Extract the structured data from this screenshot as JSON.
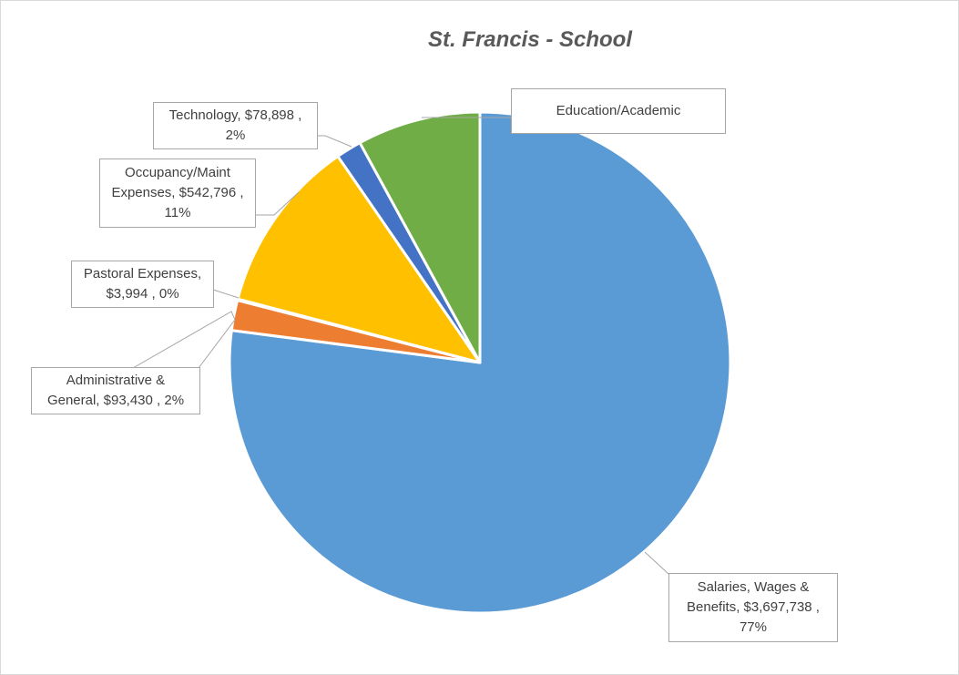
{
  "chart_data": {
    "type": "pie",
    "title": "St. Francis - School",
    "slices": [
      {
        "name": "Salaries, Wages & Benefits",
        "value": 3697738,
        "value_label": "$3,697,738",
        "percent_label": "77%",
        "color": "#5b9bd5"
      },
      {
        "name": "Administrative & General",
        "value": 93430,
        "value_label": "$93,430",
        "percent_label": "2%",
        "color": "#ed7d31"
      },
      {
        "name": "Pastoral Expenses",
        "value": 3994,
        "value_label": "$3,994",
        "percent_label": "0%",
        "color": "#a5a5a5"
      },
      {
        "name": "Occupancy/Maint Expenses",
        "value": 542796,
        "value_label": "$542,796",
        "percent_label": "11%",
        "color": "#ffc000"
      },
      {
        "name": "Technology",
        "value": 78898,
        "value_label": "$78,898",
        "percent_label": "2%",
        "color": "#4472c4"
      },
      {
        "name": "Education/Academic",
        "value": 382000,
        "color": "#70ad47"
      }
    ],
    "labels": {
      "salaries": "Salaries, Wages &\nBenefits,  $3,697,738 ,\n77%",
      "administrative": "Administrative &\nGeneral,  $93,430 , 2%",
      "pastoral": "Pastoral Expenses,\n$3,994 , 0%",
      "occupancy": "Occupancy/Maint\nExpenses,  $542,796 ,\n11%",
      "technology": "Technology,  $78,898 ,\n2%",
      "education": "Education/Academic"
    }
  }
}
